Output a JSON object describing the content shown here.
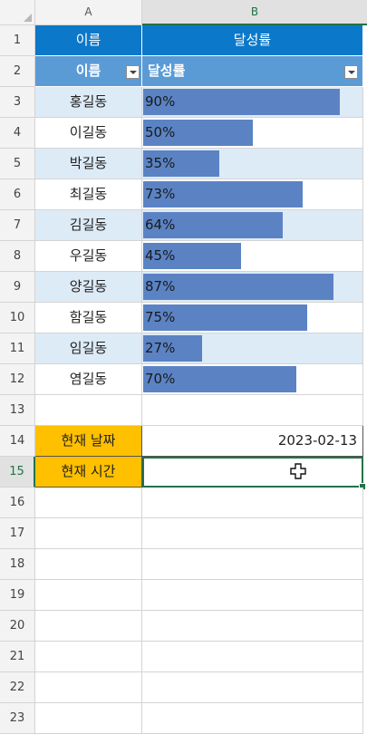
{
  "columns": [
    "A",
    "B"
  ],
  "active_column": "B",
  "row_numbers": [
    "1",
    "2",
    "3",
    "4",
    "5",
    "6",
    "7",
    "8",
    "9",
    "10",
    "11",
    "12",
    "13",
    "14",
    "15",
    "16",
    "17",
    "18",
    "19",
    "20",
    "21",
    "22",
    "23"
  ],
  "active_row": "15",
  "title_row": {
    "name": "이름",
    "rate": "달성률"
  },
  "header_row": {
    "name": "이름",
    "rate": "달성률"
  },
  "records": [
    {
      "name": "홍길동",
      "rate": 0.9,
      "label": "90%"
    },
    {
      "name": "이길동",
      "rate": 0.5,
      "label": "50%"
    },
    {
      "name": "박길동",
      "rate": 0.35,
      "label": "35%"
    },
    {
      "name": "최길동",
      "rate": 0.73,
      "label": "73%"
    },
    {
      "name": "김길동",
      "rate": 0.64,
      "label": "64%"
    },
    {
      "name": "우길동",
      "rate": 0.45,
      "label": "45%"
    },
    {
      "name": "양길동",
      "rate": 0.87,
      "label": "87%"
    },
    {
      "name": "함길동",
      "rate": 0.75,
      "label": "75%"
    },
    {
      "name": "임길동",
      "rate": 0.27,
      "label": "27%"
    },
    {
      "name": "염길동",
      "rate": 0.7,
      "label": "70%"
    }
  ],
  "current_date": {
    "label": "현재 날짜",
    "value": "2023-02-13"
  },
  "current_time": {
    "label": "현재 시간",
    "value": ""
  },
  "colors": {
    "title_fill": "#0b78c9",
    "header_fill": "#5b9bd5",
    "band_fill": "#ddebf7",
    "bar_fill": "#5b83c4",
    "label_fill": "#ffc000",
    "selection": "#217346"
  }
}
